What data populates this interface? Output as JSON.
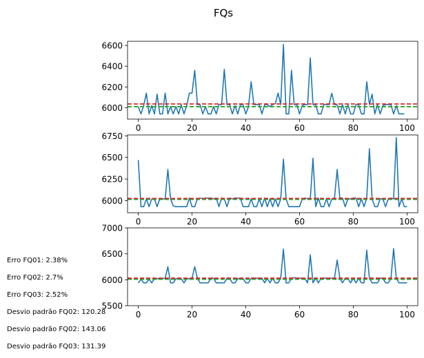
{
  "chart_data": {
    "title": "FQs",
    "subplots": [
      {
        "type": "line",
        "x_ticks": [
          0,
          20,
          40,
          60,
          80,
          100
        ],
        "y_ticks": [
          6000,
          6200,
          6400,
          6600
        ],
        "xlim": [
          -4,
          104
        ],
        "ylim": [
          5890,
          6640
        ],
        "hline_red": 6036,
        "hline_green": 6010,
        "values": [
          6010,
          5940,
          6020,
          6140,
          5940,
          6020,
          5940,
          6130,
          5940,
          5940,
          6140,
          5940,
          6010,
          5940,
          6010,
          5940,
          6030,
          5940,
          6020,
          6140,
          6140,
          6360,
          6030,
          6030,
          5940,
          6010,
          5940,
          5940,
          6010,
          5940,
          6030,
          6030,
          6370,
          6030,
          6030,
          5940,
          6020,
          5940,
          6030,
          6030,
          5940,
          6010,
          6250,
          6030,
          6030,
          6030,
          5940,
          6030,
          6030,
          6010,
          6030,
          6040,
          6140,
          6030,
          6610,
          5940,
          5940,
          6360,
          6030,
          6030,
          5940,
          6020,
          6030,
          6030,
          6480,
          6030,
          6030,
          5940,
          5940,
          6030,
          6030,
          6030,
          6140,
          6030,
          6030,
          5940,
          6030,
          5940,
          6030,
          5940,
          5940,
          6030,
          6030,
          5940,
          5940,
          6250,
          6030,
          6130,
          5940,
          6030,
          5940,
          6020,
          6030,
          6030,
          6030,
          5940,
          6020,
          5940,
          5940,
          5940
        ]
      },
      {
        "type": "line",
        "x_ticks": [
          0,
          20,
          40,
          60,
          80,
          100
        ],
        "y_ticks": [
          6000,
          6250,
          6500,
          6750
        ],
        "xlim": [
          -4,
          104
        ],
        "ylim": [
          5860,
          6760
        ],
        "hline_red": 6025,
        "hline_green": 6015,
        "values": [
          6470,
          5930,
          5930,
          6020,
          5930,
          6020,
          6020,
          5930,
          6020,
          6020,
          6020,
          6360,
          6020,
          5940,
          5930,
          5930,
          5930,
          5930,
          5930,
          6030,
          5930,
          5930,
          6020,
          6030,
          6020,
          6030,
          6030,
          6030,
          6020,
          6030,
          5930,
          6030,
          6020,
          5930,
          6030,
          6020,
          6030,
          6030,
          6030,
          5930,
          5930,
          5930,
          6020,
          5930,
          5930,
          6020,
          5930,
          6030,
          5930,
          6020,
          5930,
          6020,
          5930,
          6020,
          6480,
          6020,
          5930,
          5930,
          5930,
          5930,
          5930,
          6020,
          6030,
          6020,
          6020,
          6490,
          5930,
          6030,
          5930,
          5930,
          6020,
          5930,
          6020,
          6030,
          6360,
          6030,
          6030,
          5930,
          6020,
          6020,
          6030,
          6030,
          5930,
          6020,
          5930,
          6030,
          6600,
          6020,
          5930,
          5930,
          6020,
          6020,
          5930,
          6020,
          6030,
          6020,
          6730,
          5930,
          6020,
          5930,
          5930
        ]
      },
      {
        "type": "line",
        "x_ticks": [
          0,
          20,
          40,
          60,
          80,
          100
        ],
        "y_ticks": [
          5500,
          6000,
          6500,
          7000
        ],
        "xlim": [
          -4,
          104
        ],
        "ylim": [
          5500,
          7000
        ],
        "hline_red": 6030,
        "hline_green": 6010,
        "values": [
          5940,
          6010,
          5940,
          5940,
          6010,
          5940,
          6020,
          6020,
          6020,
          6020,
          6030,
          6250,
          5940,
          5940,
          6020,
          6020,
          6020,
          5940,
          6020,
          6020,
          6030,
          6250,
          6030,
          5940,
          5940,
          5940,
          5940,
          6030,
          6030,
          5940,
          5940,
          5940,
          5940,
          6030,
          6030,
          5940,
          5940,
          6020,
          6020,
          6020,
          5940,
          5940,
          6030,
          6030,
          6030,
          6030,
          6030,
          5940,
          6030,
          5940,
          6030,
          5940,
          5940,
          6030,
          6590,
          5940,
          5940,
          6030,
          6040,
          6030,
          6030,
          6030,
          6020,
          5940,
          6480,
          5940,
          6030,
          5940,
          6030,
          6030,
          6030,
          6020,
          6030,
          6030,
          6380,
          6030,
          5940,
          6030,
          6030,
          5940,
          6030,
          5940,
          6030,
          5940,
          5940,
          6570,
          6030,
          5940,
          5940,
          5940,
          6030,
          6030,
          5940,
          5940,
          6020,
          6600,
          6030,
          5940,
          5940,
          5940,
          5940
        ]
      }
    ],
    "colors": {
      "line": "#1f77b4",
      "hline_red": "#d62728",
      "hline_green": "#2ca02c"
    }
  },
  "side_notes": [
    "Erro FQ01: 2.38%",
    "Erro FQ02: 2.7%",
    "Erro FQ03: 2.52%",
    "Desvio padrão FQ02: 120.28",
    "Desvio padrão FQ02: 143.06",
    "Desvio padrão FQ03: 131.39"
  ]
}
